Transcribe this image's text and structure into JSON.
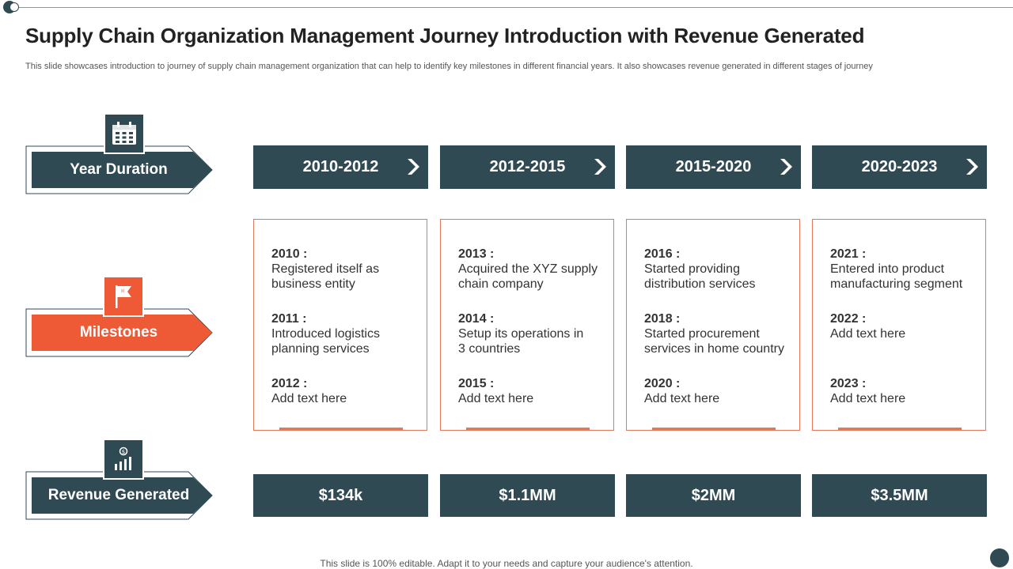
{
  "title": "Supply Chain Organization Management Journey Introduction with Revenue Generated",
  "subtitle": "This slide showcases introduction to journey of supply chain management organization that can help to identify key milestones in different financial years. It also showcases revenue generated in different stages of journey",
  "footer": "This slide is 100% editable. Adapt it to your needs and capture your audience's attention.",
  "colors": {
    "dark": "#2f4a53",
    "accent": "#ee5a36",
    "border": "#e0795e"
  },
  "labels": {
    "year_duration": "Year Duration",
    "milestones": "Milestones",
    "revenue": "Revenue Generated"
  },
  "periods": [
    "2010-2012",
    "2012-2015",
    "2015-2020",
    "2020-2023"
  ],
  "milestones": [
    {
      "entries": [
        {
          "year": "2010 :",
          "text": "Registered itself as business entity"
        },
        {
          "year": "2011 :",
          "text": "Introduced  logistics planning services"
        },
        {
          "year": "2012 :",
          "text": "Add text here"
        }
      ]
    },
    {
      "entries": [
        {
          "year": "2013 :",
          "text": "Acquired the XYZ supply chain company"
        },
        {
          "year": "2014 :",
          "text": "Setup its operations in 3 countries"
        },
        {
          "year": "2015 :",
          "text": "Add text here"
        }
      ]
    },
    {
      "entries": [
        {
          "year": "2016 :",
          "text": "Started providing distribution services"
        },
        {
          "year": "2018 :",
          "text": "Started procurement services in home country"
        },
        {
          "year": "2020 :",
          "text": "Add text here"
        }
      ]
    },
    {
      "entries": [
        {
          "year": "2021 :",
          "text": "Entered into product manufacturing segment"
        },
        {
          "year": "2022 :",
          "text": "Add text here"
        },
        {
          "year": "2023 :",
          "text": "Add text here"
        }
      ]
    }
  ],
  "revenues": [
    "$134k",
    "$1.1MM",
    "$2MM",
    "$3.5MM"
  ],
  "icons": {
    "year": "calendar-icon",
    "milestones": "flag-icon",
    "revenue": "growth-chart-icon"
  }
}
